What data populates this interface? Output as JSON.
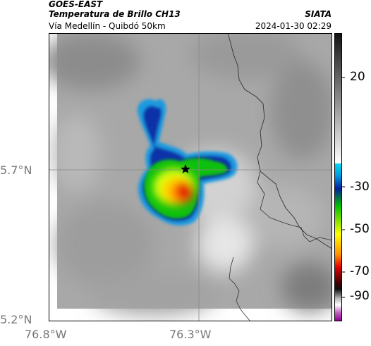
{
  "header": {
    "satellite": "GOES-EAST",
    "product": "Temperatura de Brillo CH13",
    "provider": "SIATA",
    "location": "Vía Medellín - Quibdó 50km",
    "datetime": "2024-01-30 02:29"
  },
  "map": {
    "lat_ticks": [
      "5.7°N",
      "5.2°N"
    ],
    "lon_ticks": [
      "76.8°W",
      "76.3°W"
    ],
    "marker": "star-marker",
    "background_color": "#a9a9a9"
  },
  "colorbar": {
    "ticks": [
      "20",
      "-30",
      "-50",
      "-70",
      "-90"
    ],
    "colors": {
      "warm_top": "#1a1a1a",
      "warm_bottom": "#ffffff",
      "cyan": "#00c0e0",
      "blue": "#0020a0",
      "green": "#00c000",
      "yellow": "#ffff00",
      "red": "#e00000",
      "dark_red": "#400000",
      "magenta": "#c020c0"
    }
  }
}
